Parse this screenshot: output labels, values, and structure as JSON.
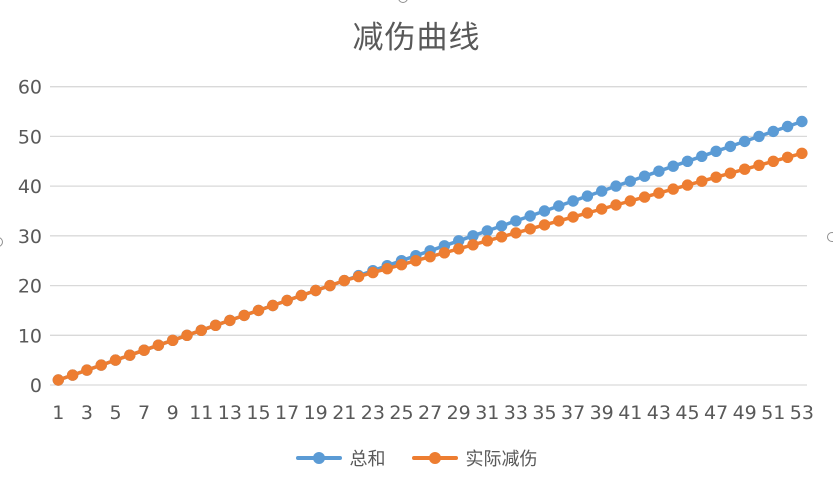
{
  "chart_data": {
    "type": "line",
    "title": "减伤曲线",
    "xlabel": "",
    "ylabel": "",
    "ylim": [
      0,
      60
    ],
    "yticks": [
      0,
      10,
      20,
      30,
      40,
      50,
      60
    ],
    "xticks": [
      1,
      3,
      5,
      7,
      9,
      11,
      13,
      15,
      17,
      19,
      21,
      23,
      25,
      27,
      29,
      31,
      33,
      35,
      37,
      39,
      41,
      43,
      45,
      47,
      49,
      51,
      53
    ],
    "x": [
      1,
      2,
      3,
      4,
      5,
      6,
      7,
      8,
      9,
      10,
      11,
      12,
      13,
      14,
      15,
      16,
      17,
      18,
      19,
      20,
      21,
      22,
      23,
      24,
      25,
      26,
      27,
      28,
      29,
      30,
      31,
      32,
      33,
      34,
      35,
      36,
      37,
      38,
      39,
      40,
      41,
      42,
      43,
      44,
      45,
      46,
      47,
      48,
      49,
      50,
      51,
      52,
      53
    ],
    "grid": "horizontal",
    "legend_position": "bottom",
    "marker": "circle",
    "series": [
      {
        "name": "总和",
        "color": "#5B9BD5",
        "values": [
          1,
          2,
          3,
          4,
          5,
          6,
          7,
          8,
          9,
          10,
          11,
          12,
          13,
          14,
          15,
          16,
          17,
          18,
          19,
          20,
          21,
          22,
          23,
          24,
          25,
          26,
          27,
          28,
          29,
          30,
          31,
          32,
          33,
          34,
          35,
          36,
          37,
          38,
          39,
          40,
          41,
          42,
          43,
          44,
          45,
          46,
          47,
          48,
          49,
          50,
          51,
          52,
          53
        ]
      },
      {
        "name": "实际减伤",
        "color": "#ED7D31",
        "values": [
          1,
          2,
          3,
          4,
          5,
          6,
          7,
          8,
          9,
          10,
          11,
          12,
          13,
          14,
          15,
          16,
          17,
          18,
          19,
          20,
          21,
          21.8,
          22.6,
          23.4,
          24.2,
          25,
          25.8,
          26.6,
          27.4,
          28.2,
          29,
          29.8,
          30.6,
          31.4,
          32.2,
          33,
          33.8,
          34.6,
          35.4,
          36.2,
          37,
          37.8,
          38.6,
          39.4,
          40.2,
          41,
          41.8,
          42.6,
          43.4,
          44.2,
          45,
          45.8,
          46.6
        ]
      }
    ],
    "text_color": "#595959",
    "grid_color": "#D9D9D9"
  }
}
